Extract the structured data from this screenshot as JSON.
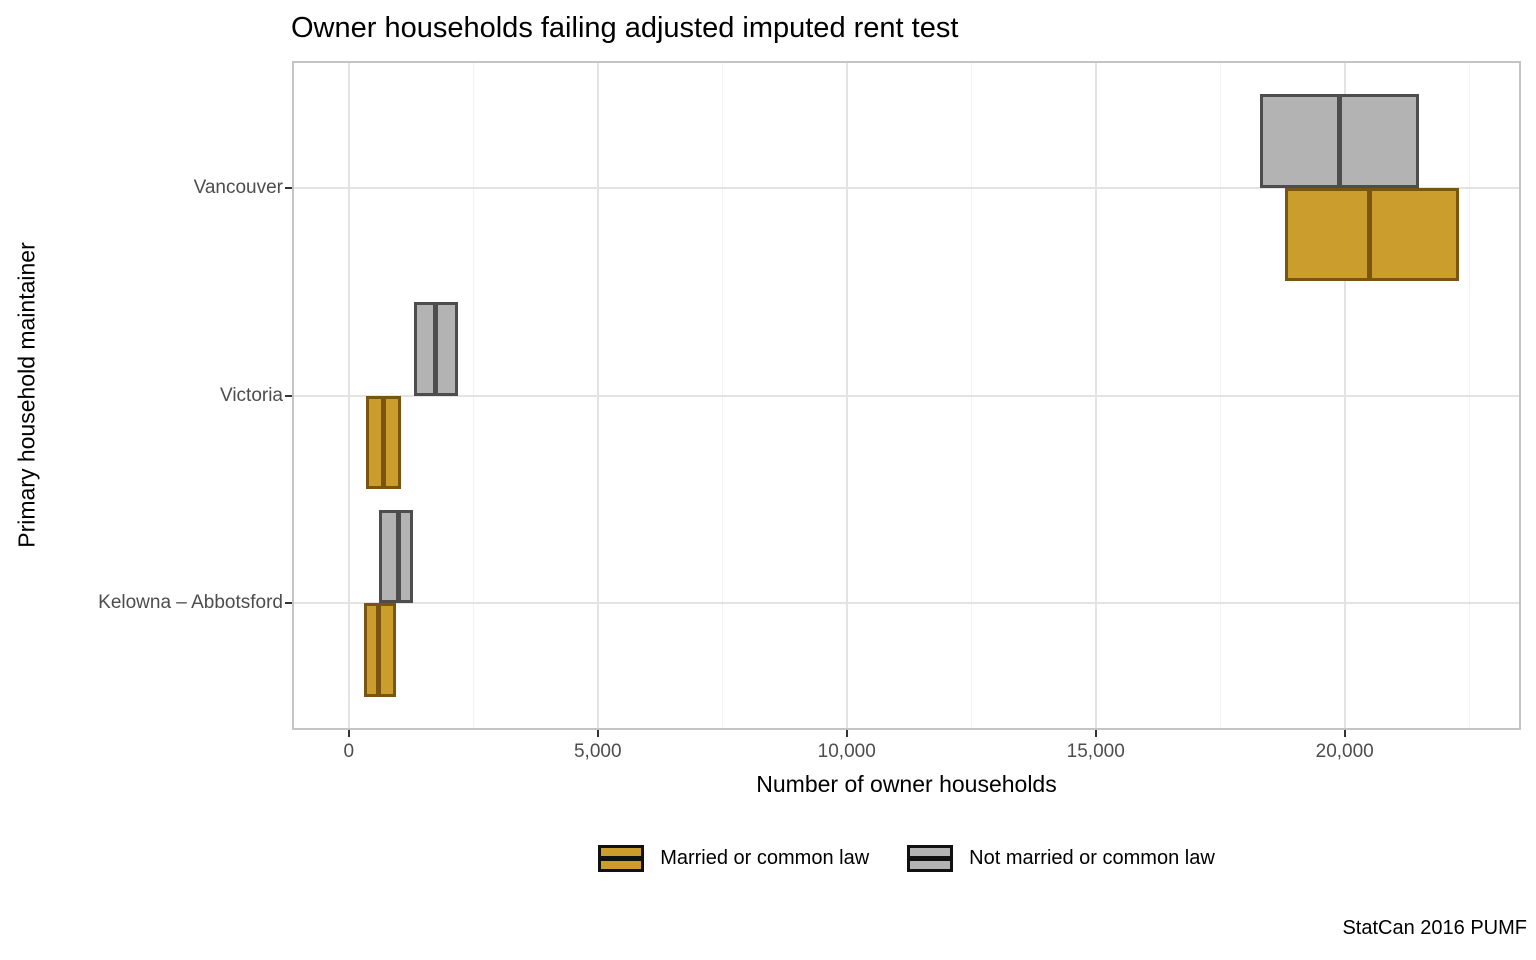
{
  "chart_data": {
    "type": "crossbar",
    "orientation": "horizontal",
    "title": "Owner households failing adjusted imputed rent test",
    "xlabel": "Number of owner households",
    "ylabel": "Primary household maintainer",
    "caption": "StatCan 2016 PUMF",
    "categories": [
      "Vancouver",
      "Victoria",
      "Kelowna – Abbotsford"
    ],
    "series": [
      {
        "name": "Married or common law",
        "fill": "#CB9D2C",
        "stroke": "#7A5413",
        "values": [
          {
            "category": "Vancouver",
            "xmin": 18800,
            "mid": 20500,
            "xmax": 22300
          },
          {
            "category": "Victoria",
            "xmin": 350,
            "mid": 700,
            "xmax": 1050
          },
          {
            "category": "Kelowna – Abbotsford",
            "xmin": 300,
            "mid": 600,
            "xmax": 950
          }
        ]
      },
      {
        "name": "Not married or common law",
        "fill": "#B3B3B3",
        "stroke": "#4D4D4D",
        "values": [
          {
            "category": "Vancouver",
            "xmin": 18300,
            "mid": 19900,
            "xmax": 21500
          },
          {
            "category": "Victoria",
            "xmin": 1300,
            "mid": 1750,
            "xmax": 2200
          },
          {
            "category": "Kelowna – Abbotsford",
            "xmin": 600,
            "mid": 1000,
            "xmax": 1300
          }
        ]
      }
    ],
    "x_axis": {
      "xlim": [
        -1100,
        23500
      ],
      "ticks": [
        {
          "value": 0,
          "label": "0"
        },
        {
          "value": 5000,
          "label": "5,000"
        },
        {
          "value": 10000,
          "label": "10,000"
        },
        {
          "value": 15000,
          "label": "15,000"
        },
        {
          "value": 20000,
          "label": "20,000"
        }
      ],
      "minor_ticks": [
        2500,
        7500,
        12500,
        17500,
        22500
      ]
    },
    "legend_position": "bottom",
    "grid": true,
    "colors": {
      "grid_major": "#E3E3E3",
      "grid_minor": "#F2F2F2",
      "panel_border": "#C4C4C4",
      "tick_mark": "#333333",
      "axis_text": "#4D4D4D",
      "legend_key_border": "#111111"
    }
  }
}
